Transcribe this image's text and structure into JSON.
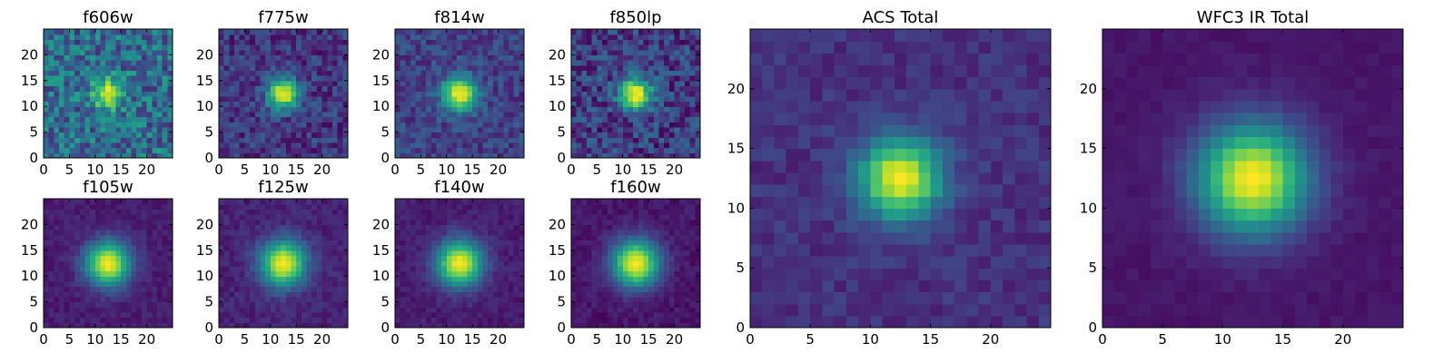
{
  "chart_data": {
    "type": "heatmap",
    "colormap": "viridis",
    "grid": false,
    "image_size": [
      25,
      25
    ],
    "origin": "lower",
    "panels": [
      {
        "title": "f606w",
        "xlim": [
          0,
          25
        ],
        "ylim": [
          0,
          25
        ],
        "xticks": [
          0,
          5,
          10,
          15,
          20
        ],
        "yticks": [
          0,
          5,
          10,
          15,
          20
        ],
        "xtick_labels": [
          "0",
          "5",
          "10",
          "15",
          "20"
        ],
        "ytick_labels": [
          "0",
          "5",
          "10",
          "15",
          "20"
        ],
        "center": [
          12.5,
          12.5
        ],
        "sigma": 2.0,
        "background": 0.35,
        "noise": 0.28
      },
      {
        "title": "f775w",
        "xlim": [
          0,
          25
        ],
        "ylim": [
          0,
          25
        ],
        "xticks": [
          0,
          5,
          10,
          15,
          20
        ],
        "yticks": [
          0,
          5,
          10,
          15,
          20
        ],
        "xtick_labels": [
          "0",
          "5",
          "10",
          "15",
          "20"
        ],
        "ytick_labels": [
          "0",
          "5",
          "10",
          "15",
          "20"
        ],
        "center": [
          12.5,
          12.5
        ],
        "sigma": 2.1,
        "background": 0.16,
        "noise": 0.16
      },
      {
        "title": "f814w",
        "xlim": [
          0,
          25
        ],
        "ylim": [
          0,
          25
        ],
        "xticks": [
          0,
          5,
          10,
          15,
          20
        ],
        "yticks": [
          0,
          5,
          10,
          15,
          20
        ],
        "xtick_labels": [
          "0",
          "5",
          "10",
          "15",
          "20"
        ],
        "ytick_labels": [
          "0",
          "5",
          "10",
          "15",
          "20"
        ],
        "center": [
          12.5,
          12.5
        ],
        "sigma": 2.3,
        "background": 0.2,
        "noise": 0.14
      },
      {
        "title": "f850lp",
        "xlim": [
          0,
          25
        ],
        "ylim": [
          0,
          25
        ],
        "xticks": [
          0,
          5,
          10,
          15,
          20
        ],
        "yticks": [
          0,
          5,
          10,
          15,
          20
        ],
        "xtick_labels": [
          "0",
          "5",
          "10",
          "15",
          "20"
        ],
        "ytick_labels": [
          "0",
          "5",
          "10",
          "15",
          "20"
        ],
        "center": [
          12.5,
          12.5
        ],
        "sigma": 2.2,
        "background": 0.18,
        "noise": 0.2
      },
      {
        "title": "f105w",
        "xlim": [
          0,
          25
        ],
        "ylim": [
          0,
          25
        ],
        "xticks": [
          0,
          5,
          10,
          15,
          20
        ],
        "yticks": [
          0,
          5,
          10,
          15,
          20
        ],
        "xtick_labels": [
          "0",
          "5",
          "10",
          "15",
          "20"
        ],
        "ytick_labels": [
          "0",
          "5",
          "10",
          "15",
          "20"
        ],
        "center": [
          12.5,
          12.5
        ],
        "sigma": 3.0,
        "background": 0.08,
        "noise": 0.05
      },
      {
        "title": "f125w",
        "xlim": [
          0,
          25
        ],
        "ylim": [
          0,
          25
        ],
        "xticks": [
          0,
          5,
          10,
          15,
          20
        ],
        "yticks": [
          0,
          5,
          10,
          15,
          20
        ],
        "xtick_labels": [
          "0",
          "5",
          "10",
          "15",
          "20"
        ],
        "ytick_labels": [
          "0",
          "5",
          "10",
          "15",
          "20"
        ],
        "center": [
          12.5,
          12.5
        ],
        "sigma": 3.1,
        "background": 0.1,
        "noise": 0.06
      },
      {
        "title": "f140w",
        "xlim": [
          0,
          25
        ],
        "ylim": [
          0,
          25
        ],
        "xticks": [
          0,
          5,
          10,
          15,
          20
        ],
        "yticks": [
          0,
          5,
          10,
          15,
          20
        ],
        "xtick_labels": [
          "0",
          "5",
          "10",
          "15",
          "20"
        ],
        "ytick_labels": [
          "0",
          "5",
          "10",
          "15",
          "20"
        ],
        "center": [
          12.5,
          12.5
        ],
        "sigma": 3.1,
        "background": 0.08,
        "noise": 0.05
      },
      {
        "title": "f160w",
        "xlim": [
          0,
          25
        ],
        "ylim": [
          0,
          25
        ],
        "xticks": [
          0,
          5,
          10,
          15,
          20
        ],
        "yticks": [
          0,
          5,
          10,
          15,
          20
        ],
        "xtick_labels": [
          "0",
          "5",
          "10",
          "15",
          "20"
        ],
        "ytick_labels": [
          "0",
          "5",
          "10",
          "15",
          "20"
        ],
        "center": [
          12.5,
          12.5
        ],
        "sigma": 3.2,
        "background": 0.06,
        "noise": 0.05
      },
      {
        "title": "ACS Total",
        "xlim": [
          0,
          25
        ],
        "ylim": [
          0,
          25
        ],
        "xticks": [
          0,
          5,
          10,
          15,
          20
        ],
        "yticks": [
          0,
          5,
          10,
          15,
          20
        ],
        "xtick_labels": [
          "0",
          "5",
          "10",
          "15",
          "20"
        ],
        "ytick_labels": [
          "0",
          "5",
          "10",
          "15",
          "20"
        ],
        "center": [
          12.5,
          12.5
        ],
        "sigma": 2.4,
        "background": 0.14,
        "noise": 0.07
      },
      {
        "title": "WFC3 IR Total",
        "xlim": [
          0,
          25
        ],
        "ylim": [
          0,
          25
        ],
        "xticks": [
          0,
          5,
          10,
          15,
          20
        ],
        "yticks": [
          0,
          5,
          10,
          15,
          20
        ],
        "xtick_labels": [
          "0",
          "5",
          "10",
          "15",
          "20"
        ],
        "ytick_labels": [
          "0",
          "5",
          "10",
          "15",
          "20"
        ],
        "center": [
          12.5,
          12.5
        ],
        "sigma": 3.2,
        "background": 0.06,
        "noise": 0.025
      }
    ]
  }
}
